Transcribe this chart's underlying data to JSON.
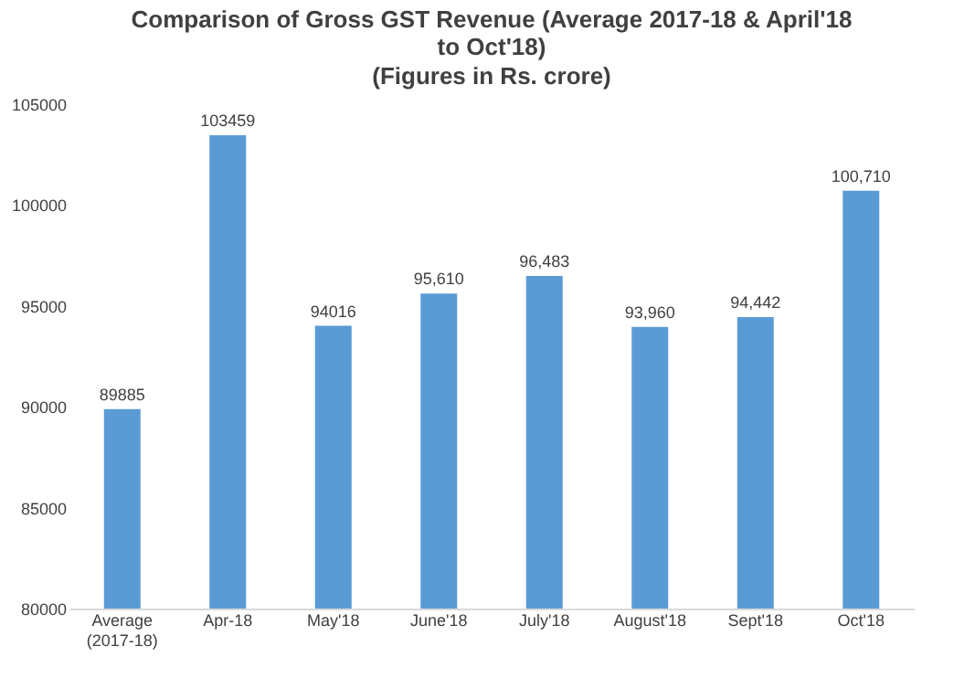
{
  "chart_data": {
    "type": "bar",
    "title": "Comparison of Gross GST Revenue (Average 2017-18 & April'18 to Oct'18)",
    "subtitle": "(Figures in Rs. crore)",
    "categories": [
      "Average (2017-18)",
      "Apr-18",
      "May'18",
      "June'18",
      "July'18",
      "August'18",
      "Sept'18",
      "Oct'18"
    ],
    "values": [
      89885,
      103459,
      94016,
      95610,
      96483,
      93960,
      94442,
      100710
    ],
    "value_labels": [
      "89885",
      "103459",
      "94016",
      "95,610",
      "96,483",
      "93,960",
      "94,442",
      "100,710"
    ],
    "color": "#5b9bd5",
    "ylim": [
      80000,
      105000
    ],
    "yticks": [
      80000,
      85000,
      90000,
      95000,
      100000,
      105000
    ],
    "grid": false
  }
}
